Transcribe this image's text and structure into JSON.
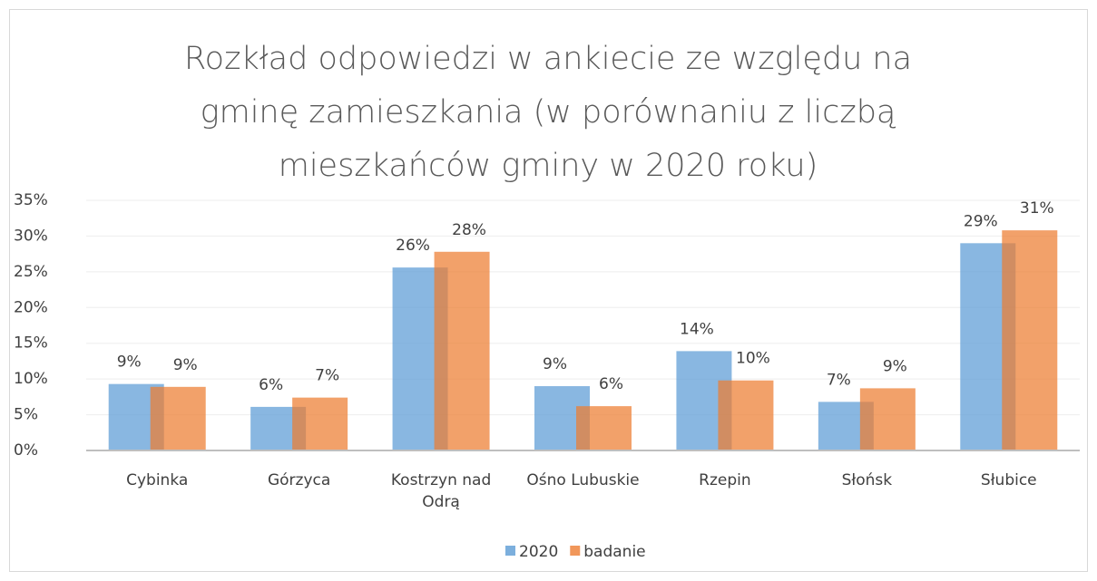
{
  "chart_data": {
    "type": "bar",
    "title": "Rozkład odpowiedzi w ankiecie ze względu na gminę zamieszkania (w porównaniu z liczbą mieszkańców gminy w 2020 roku)",
    "categories": [
      "Cybinka",
      "Górzyca",
      "Kostrzyn nad Odrą",
      "Ośno Lubuskie",
      "Rzepin",
      "Słońsk",
      "Słubice"
    ],
    "series": [
      {
        "name": "2020",
        "color": "#5b9bd5",
        "values": [
          9.3,
          6.1,
          25.6,
          9.0,
          13.9,
          6.8,
          29.0
        ],
        "value_labels": [
          "9%",
          "6%",
          "26%",
          "9%",
          "14%",
          "7%",
          "29%"
        ]
      },
      {
        "name": "badanie",
        "color": "#ed7d31",
        "values": [
          8.9,
          7.4,
          27.8,
          6.2,
          9.8,
          8.7,
          30.8
        ],
        "value_labels": [
          "9%",
          "7%",
          "28%",
          "6%",
          "10%",
          "9%",
          "31%"
        ]
      }
    ],
    "ylim": [
      0,
      35
    ],
    "yticks": [
      {
        "value": 0,
        "label": "0%"
      },
      {
        "value": 5,
        "label": "5%"
      },
      {
        "value": 10,
        "label": "10%"
      },
      {
        "value": 15,
        "label": "15%"
      },
      {
        "value": 20,
        "label": "20%"
      },
      {
        "value": 25,
        "label": "25%"
      },
      {
        "value": 30,
        "label": "30%"
      },
      {
        "value": 35,
        "label": "35%"
      }
    ],
    "grid": true,
    "legend": "bottom"
  }
}
